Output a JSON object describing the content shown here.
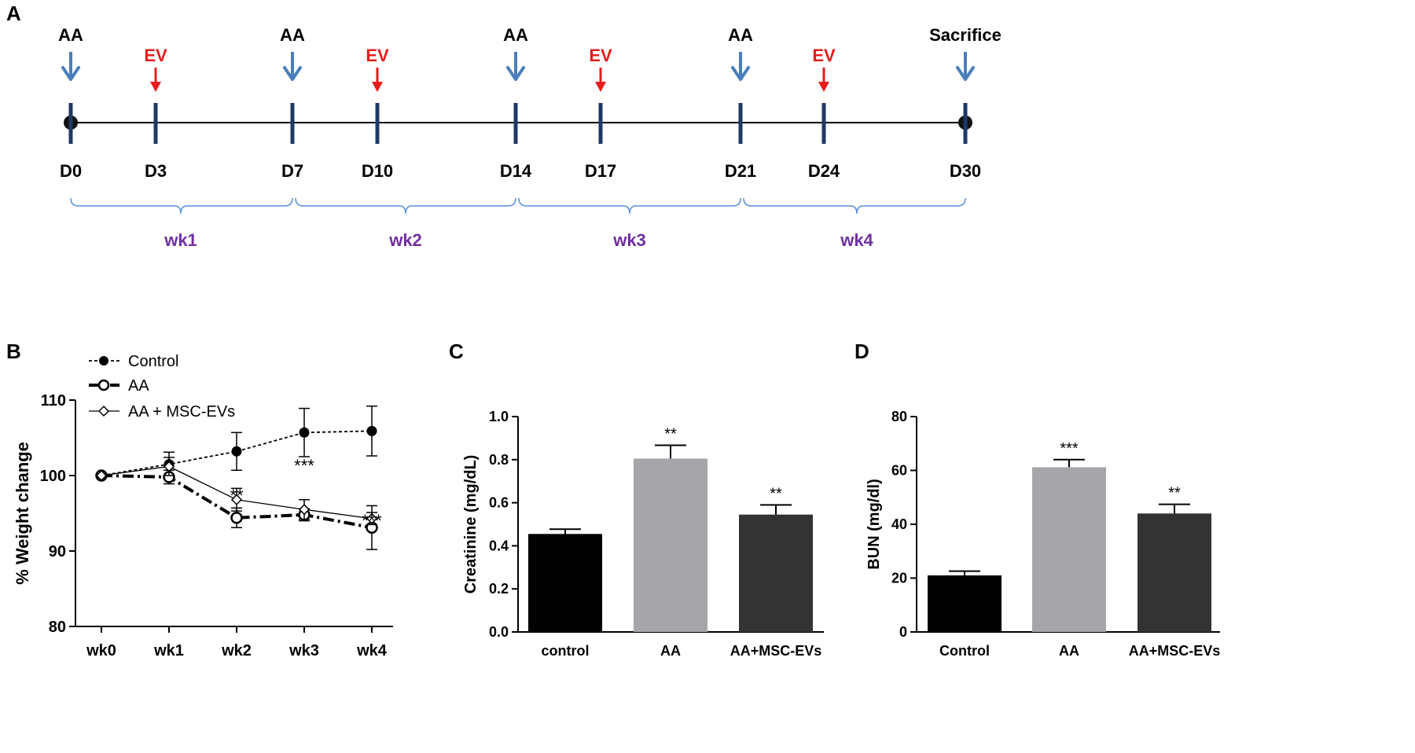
{
  "colors": {
    "timeline_blue_arrow": "#4a7ebb",
    "ev_red": "#e81c1c",
    "tick_navy": "#1f3864",
    "brace_blue": "#5b8fd6",
    "week_purple": "#7030a0",
    "bar_control": "#000000",
    "bar_aa": "#a6a6aa",
    "bar_aa_evs": "#333333"
  },
  "panel_a": {
    "letter": "A",
    "aa_label": "AA",
    "ev_label": "EV",
    "sacrifice_label": "Sacrifice",
    "days": [
      "D0",
      "D3",
      "D7",
      "D10",
      "D14",
      "D17",
      "D21",
      "D24",
      "D30"
    ],
    "aa_days": [
      "D0",
      "D7",
      "D14",
      "D21"
    ],
    "ev_days": [
      "D3",
      "D10",
      "D17",
      "D24"
    ],
    "sacrifice_day": "D30",
    "weeks": [
      "wk1",
      "wk2",
      "wk3",
      "wk4"
    ]
  },
  "chart_data": [
    {
      "panel": "B",
      "type": "line",
      "categories": [
        "wk0",
        "wk1",
        "wk2",
        "wk3",
        "wk4"
      ],
      "ylabel": "% Weight change",
      "ylim": [
        80,
        110
      ],
      "yticks": [
        80,
        90,
        100,
        110
      ],
      "series": [
        {
          "name": "Control",
          "values": [
            100,
            101.5,
            103.2,
            105.7,
            105.9
          ],
          "errors": [
            0,
            1.6,
            2.5,
            3.2,
            3.3
          ],
          "line": "dotted",
          "marker": "filled-circle"
        },
        {
          "name": "AA",
          "values": [
            100,
            99.8,
            94.4,
            94.8,
            93.1
          ],
          "errors": [
            0,
            0.9,
            1.3,
            0.8,
            2.9
          ],
          "line": "dash-dot",
          "marker": "open-circle"
        },
        {
          "name": "AA  + MSC-EVs",
          "values": [
            100,
            101.2,
            96.8,
            95.5,
            94.3
          ],
          "errors": [
            0,
            1.2,
            1.5,
            1.3,
            0.8
          ],
          "line": "solid",
          "marker": "open-diamond"
        }
      ],
      "annotations": [
        {
          "category": "wk2",
          "text": "**"
        },
        {
          "category": "wk3",
          "text": "***"
        },
        {
          "category": "wk4",
          "text": "***"
        }
      ]
    },
    {
      "panel": "C",
      "type": "bar",
      "categories": [
        "control",
        "AA",
        "AA+MSC-EVs"
      ],
      "values": [
        0.455,
        0.805,
        0.545
      ],
      "errors": [
        0.022,
        0.062,
        0.045
      ],
      "ylabel": "Creatinine (mg/dL)",
      "ylim": [
        0,
        1.0
      ],
      "yticks": [
        "0.0",
        "0.2",
        "0.4",
        "0.6",
        "0.8",
        "1.0"
      ],
      "annotations": [
        "",
        "**",
        "**"
      ]
    },
    {
      "panel": "D",
      "type": "bar",
      "categories": [
        "Control",
        "AA",
        "AA+MSC-EVs"
      ],
      "values": [
        21,
        61.2,
        44
      ],
      "errors": [
        1.6,
        2.8,
        3.4
      ],
      "ylabel": "BUN (mg/dl)",
      "ylim": [
        0,
        80
      ],
      "yticks": [
        "0",
        "20",
        "40",
        "60",
        "80"
      ],
      "annotations": [
        "",
        "***",
        "**"
      ]
    }
  ]
}
